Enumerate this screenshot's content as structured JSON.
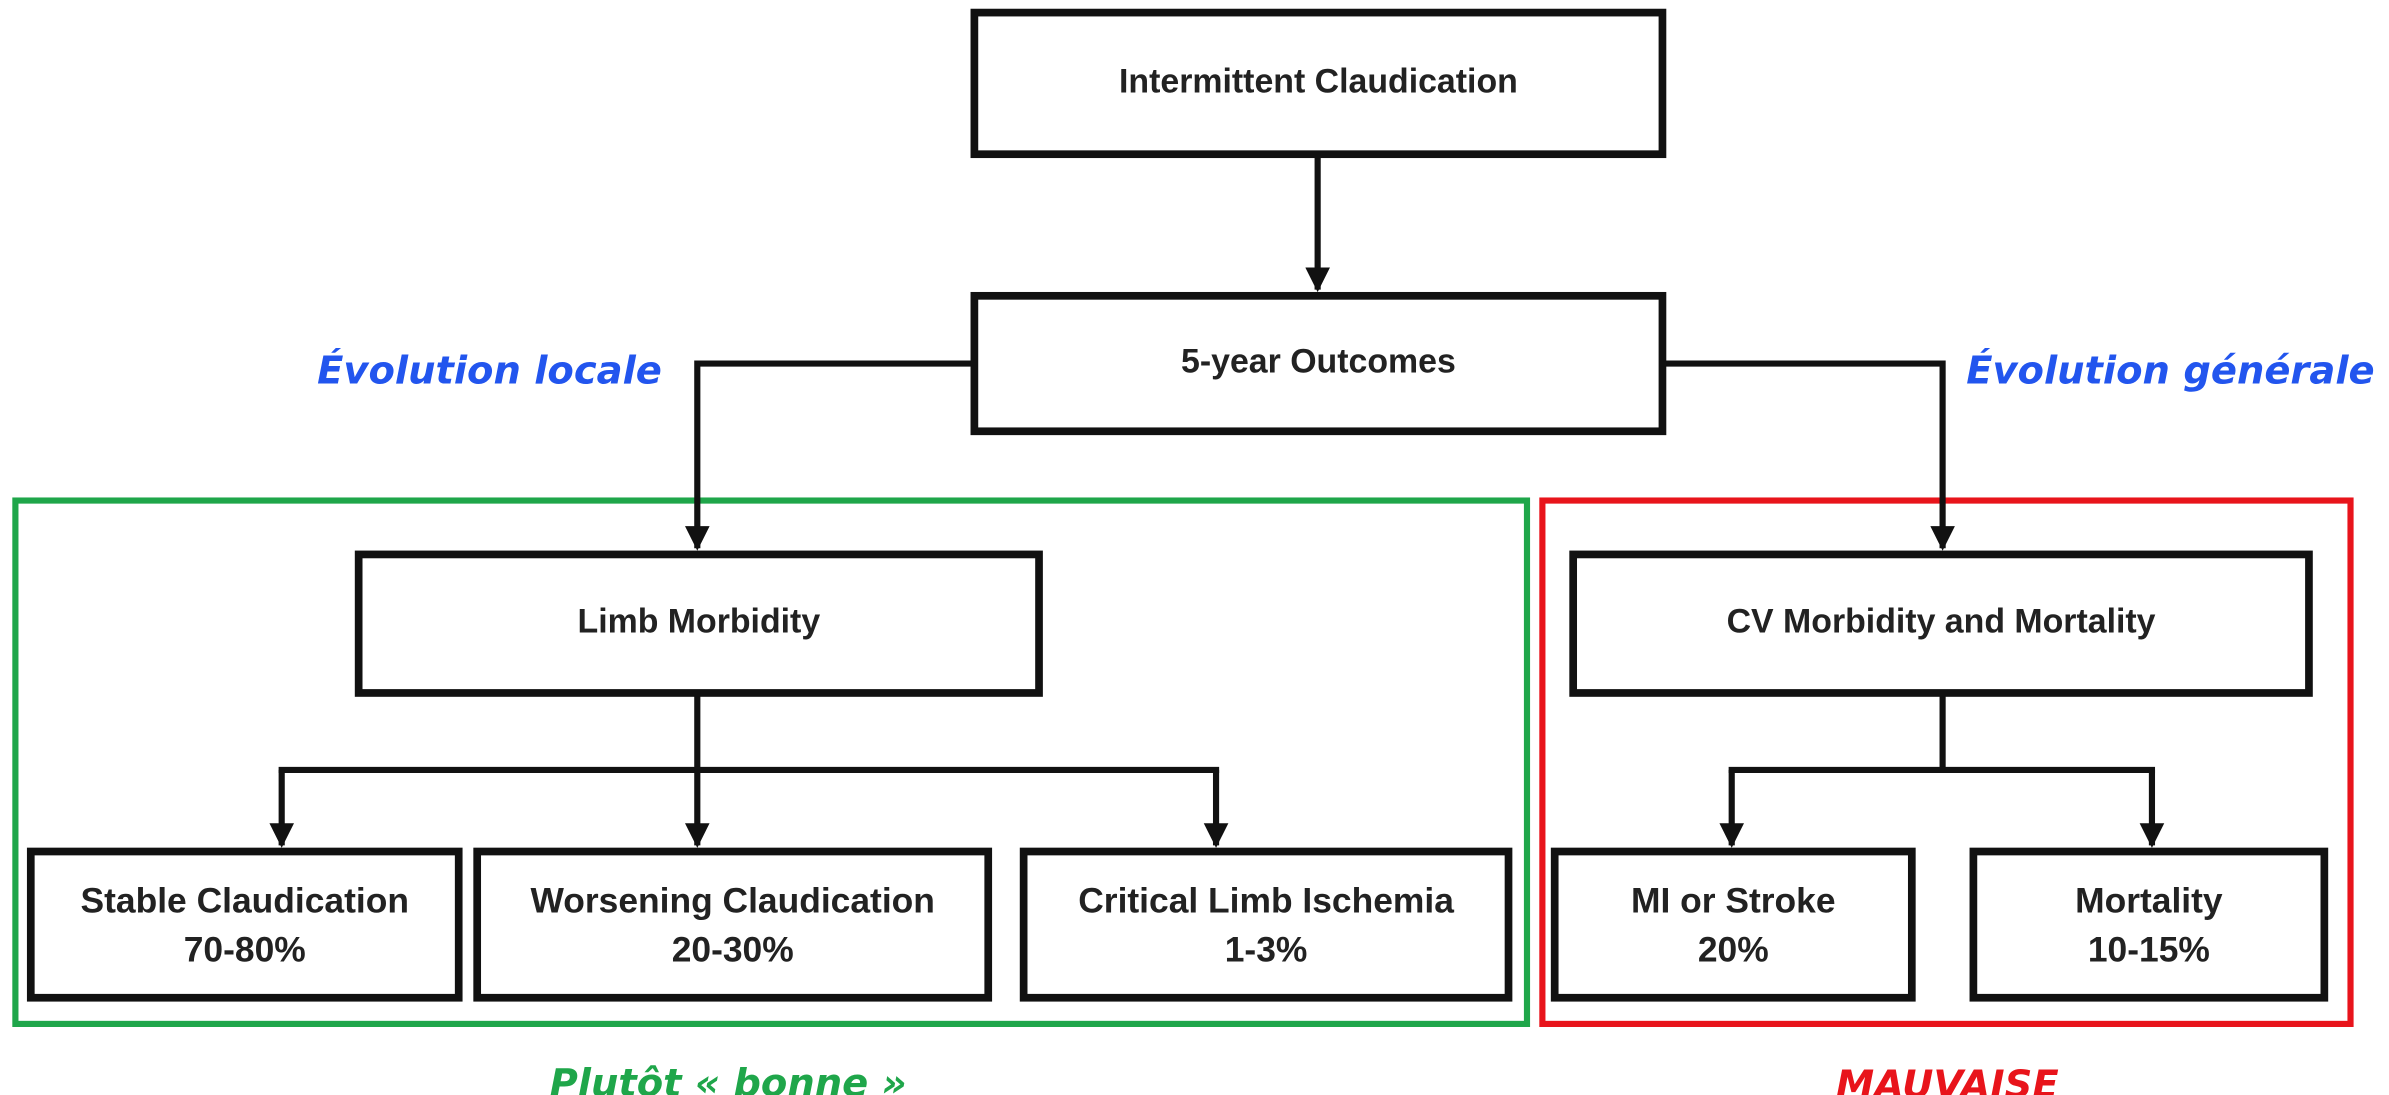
{
  "nodes": [
    {
      "label": "Intermittent Claudication"
    },
    {
      "label": "5-year Outcomes"
    },
    {
      "label": "Limb Morbidity"
    },
    {
      "label": "CV Morbidity and Mortality"
    },
    {
      "label": "Stable Claudication",
      "detail": "70-80%"
    },
    {
      "label": "Worsening Claudication",
      "detail": "20-30%"
    },
    {
      "label": "Critical Limb Ischemia",
      "detail": "1-3%"
    },
    {
      "label": "MI or Stroke",
      "detail": "20%"
    },
    {
      "label": "Mortality",
      "detail": "10-15%"
    }
  ],
  "annotations": {
    "left": "Évolution locale",
    "right": "Évolution générale",
    "good": "Plutôt « bonne »",
    "bad": "MAUVAISE"
  }
}
